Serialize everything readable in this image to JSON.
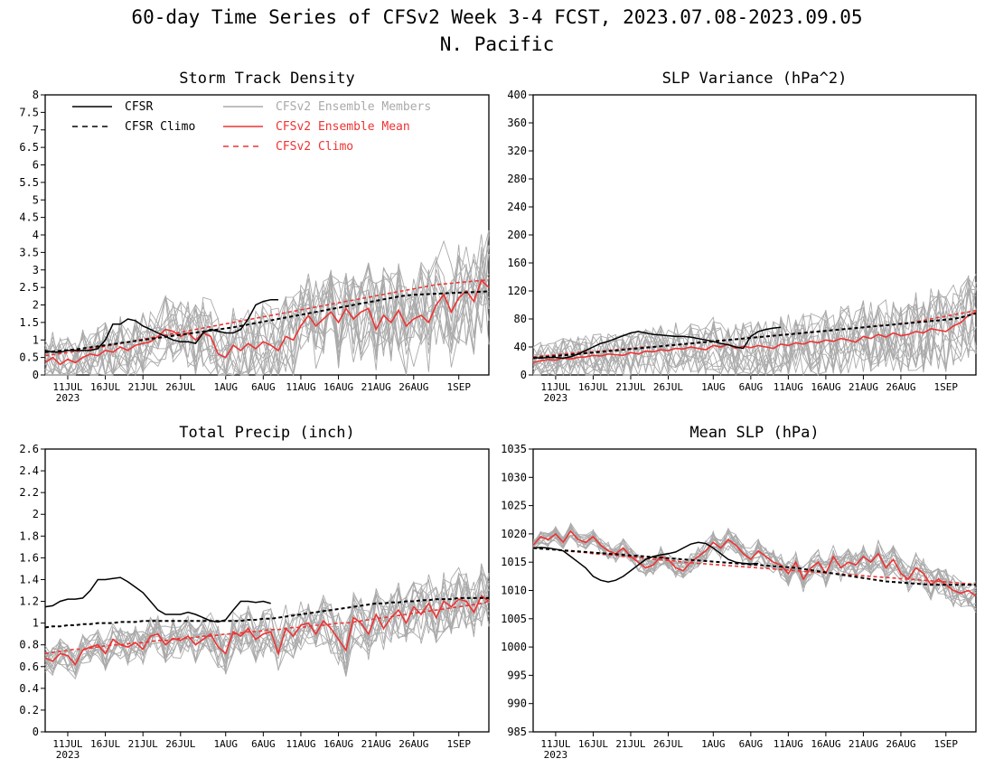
{
  "page": {
    "title_line1": "60-day Time Series of CFSv2 Week 3-4 FCST, 2023.07.08-2023.09.05",
    "title_line2": "N. Pacific"
  },
  "colors": {
    "cfsr": "#000000",
    "ensemble_member": "#aaaaaa",
    "ensemble_mean": "#ee3333",
    "axis": "#000000"
  },
  "legend": [
    {
      "label": "CFSR",
      "style": "solid",
      "color": "#000000"
    },
    {
      "label": "CFSR Climo",
      "style": "dashed",
      "color": "#000000"
    },
    {
      "label": "CFSv2 Ensemble Members",
      "style": "solid",
      "color": "#aaaaaa"
    },
    {
      "label": "CFSv2 Ensemble Mean",
      "style": "solid",
      "color": "#ee3333"
    },
    {
      "label": "CFSv2 Climo",
      "style": "dashed",
      "color": "#ee3333"
    }
  ],
  "x_axis": {
    "start_date": "2023-07-08",
    "end_date": "2023-09-05",
    "tick_days": [
      3,
      8,
      13,
      18,
      24,
      29,
      34,
      39,
      44,
      49,
      55
    ],
    "tick_labels": [
      "11JUL",
      "16JUL",
      "21JUL",
      "26JUL",
      "1AUG",
      "6AUG",
      "11AUG",
      "16AUG",
      "21AUG",
      "26AUG",
      "1SEP"
    ],
    "year_label": "2023"
  },
  "chart_data": [
    {
      "type": "line",
      "title": "Storm Track Density",
      "ylim": [
        0,
        8
      ],
      "y_ticks": [
        "0",
        "0.5",
        "1",
        "1.5",
        "2",
        "2.5",
        "3",
        "3.5",
        "4",
        "4.5",
        "5",
        "5.5",
        "6",
        "6.5",
        "7",
        "7.5",
        "8"
      ],
      "legend_position": "top-left",
      "series": [
        {
          "name": "CFSR",
          "values": [
            0.7,
            0.65,
            0.65,
            0.7,
            0.7,
            0.7,
            0.7,
            0.75,
            1.0,
            1.45,
            1.45,
            1.6,
            1.55,
            1.4,
            1.3,
            1.2,
            1.1,
            1.0,
            0.95,
            0.95,
            0.9,
            1.2,
            1.3,
            1.25,
            1.2,
            1.2,
            1.3,
            1.6,
            2.0,
            2.1,
            2.15,
            2.15
          ]
        },
        {
          "name": "CFSR Climo",
          "values": [
            0.65,
            0.67,
            0.69,
            0.71,
            0.73,
            0.76,
            0.79,
            0.82,
            0.85,
            0.88,
            0.91,
            0.94,
            0.97,
            1.0,
            1.03,
            1.06,
            1.09,
            1.12,
            1.15,
            1.18,
            1.21,
            1.24,
            1.27,
            1.3,
            1.33,
            1.36,
            1.4,
            1.44,
            1.48,
            1.52,
            1.56,
            1.6,
            1.64,
            1.68,
            1.72,
            1.76,
            1.8,
            1.84,
            1.88,
            1.92,
            1.96,
            2.0,
            2.04,
            2.08,
            2.12,
            2.16,
            2.2,
            2.24,
            2.27,
            2.29,
            2.3,
            2.31,
            2.32,
            2.33,
            2.34,
            2.35,
            2.36,
            2.37,
            2.38,
            2.39
          ]
        },
        {
          "name": "CFSv2 Ensemble Mean",
          "values": [
            0.35,
            0.5,
            0.3,
            0.45,
            0.35,
            0.5,
            0.6,
            0.55,
            0.7,
            0.65,
            0.8,
            0.7,
            0.85,
            0.9,
            0.95,
            1.1,
            1.3,
            1.25,
            1.1,
            1.2,
            1.0,
            1.2,
            1.1,
            0.6,
            0.5,
            0.85,
            0.7,
            0.9,
            0.75,
            0.95,
            0.85,
            0.7,
            1.1,
            1.0,
            1.4,
            1.7,
            1.4,
            1.6,
            1.8,
            1.5,
            1.9,
            1.6,
            1.8,
            1.9,
            1.3,
            1.7,
            1.5,
            1.85,
            1.4,
            1.6,
            1.7,
            1.5,
            2.0,
            2.3,
            1.8,
            2.2,
            2.4,
            2.1,
            2.7,
            2.5
          ]
        },
        {
          "name": "CFSv2 Climo",
          "values": [
            0.55,
            0.58,
            0.61,
            0.64,
            0.67,
            0.7,
            0.74,
            0.78,
            0.82,
            0.86,
            0.9,
            0.94,
            0.98,
            1.02,
            1.06,
            1.1,
            1.14,
            1.18,
            1.22,
            1.26,
            1.3,
            1.34,
            1.38,
            1.42,
            1.46,
            1.5,
            1.54,
            1.58,
            1.62,
            1.66,
            1.7,
            1.74,
            1.78,
            1.82,
            1.86,
            1.9,
            1.94,
            1.98,
            2.02,
            2.06,
            2.1,
            2.14,
            2.18,
            2.22,
            2.26,
            2.3,
            2.34,
            2.38,
            2.42,
            2.46,
            2.5,
            2.54,
            2.58,
            2.6,
            2.62,
            2.64,
            2.66,
            2.68,
            2.7,
            2.72
          ]
        }
      ]
    },
    {
      "type": "line",
      "title": "SLP Variance (hPa^2)",
      "ylim": [
        0,
        400
      ],
      "y_ticks": [
        "0",
        "40",
        "80",
        "120",
        "160",
        "200",
        "240",
        "280",
        "320",
        "360",
        "400"
      ],
      "series": [
        {
          "name": "CFSR",
          "values": [
            25,
            24,
            25,
            25,
            24,
            26,
            30,
            35,
            40,
            45,
            48,
            52,
            56,
            60,
            62,
            60,
            58,
            57,
            56,
            55,
            55,
            54,
            52,
            50,
            48,
            45,
            43,
            40,
            38,
            55,
            62,
            65,
            67,
            68
          ]
        },
        {
          "name": "CFSR Climo",
          "values": [
            24,
            25,
            26,
            27,
            28,
            29,
            30,
            31,
            32,
            33,
            34,
            35,
            36,
            37,
            38,
            39,
            40,
            41,
            42,
            43,
            44,
            45,
            46,
            47,
            48,
            49,
            50,
            51,
            52,
            53,
            54,
            55,
            56,
            57,
            58,
            59,
            60,
            61,
            62,
            63,
            64,
            65,
            66,
            67,
            68,
            69,
            70,
            71,
            72,
            73,
            74,
            75,
            76,
            77,
            78,
            79,
            80,
            82,
            85,
            88
          ]
        },
        {
          "name": "CFSv2 Ensemble Mean",
          "values": [
            18,
            20,
            22,
            21,
            24,
            23,
            25,
            26,
            28,
            27,
            30,
            29,
            28,
            32,
            30,
            34,
            33,
            36,
            35,
            38,
            37,
            40,
            38,
            36,
            42,
            40,
            44,
            38,
            41,
            39,
            42,
            40,
            38,
            44,
            42,
            46,
            44,
            48,
            46,
            50,
            48,
            52,
            50,
            47,
            55,
            52,
            58,
            54,
            60,
            56,
            58,
            62,
            60,
            66,
            64,
            62,
            70,
            75,
            85,
            90
          ]
        },
        {
          "name": "CFSv2 Climo",
          "values": [
            26,
            27,
            28,
            29,
            30,
            31,
            32,
            33,
            33,
            34,
            35,
            36,
            37,
            38,
            39,
            40,
            40,
            41,
            42,
            43,
            44,
            45,
            46,
            47,
            48,
            49,
            50,
            51,
            52,
            53,
            54,
            55,
            56,
            57,
            58,
            59,
            60,
            61,
            62,
            63,
            64,
            65,
            66,
            67,
            68,
            69,
            70,
            71,
            72,
            73,
            74,
            76,
            78,
            80,
            82,
            84,
            86,
            88,
            90,
            92
          ]
        }
      ]
    },
    {
      "type": "line",
      "title": "Total Precip (inch)",
      "ylim": [
        0,
        2.6
      ],
      "y_ticks": [
        "0",
        "0.2",
        "0.4",
        "0.6",
        "0.8",
        "1",
        "1.2",
        "1.4",
        "1.6",
        "1.8",
        "2",
        "2.2",
        "2.4",
        "2.6"
      ],
      "series": [
        {
          "name": "CFSR",
          "values": [
            1.15,
            1.16,
            1.2,
            1.22,
            1.22,
            1.23,
            1.3,
            1.4,
            1.4,
            1.41,
            1.42,
            1.38,
            1.33,
            1.28,
            1.2,
            1.12,
            1.08,
            1.08,
            1.08,
            1.1,
            1.08,
            1.05,
            1.02,
            1.01,
            1.03,
            1.12,
            1.2,
            1.2,
            1.19,
            1.2,
            1.18
          ]
        },
        {
          "name": "CFSR Climo",
          "values": [
            0.96,
            0.97,
            0.97,
            0.98,
            0.98,
            0.99,
            0.99,
            1.0,
            1.0,
            1.0,
            1.01,
            1.01,
            1.01,
            1.02,
            1.02,
            1.02,
            1.02,
            1.02,
            1.02,
            1.02,
            1.02,
            1.02,
            1.02,
            1.02,
            1.02,
            1.02,
            1.02,
            1.03,
            1.03,
            1.04,
            1.04,
            1.05,
            1.06,
            1.07,
            1.08,
            1.09,
            1.1,
            1.11,
            1.12,
            1.13,
            1.14,
            1.15,
            1.16,
            1.17,
            1.18,
            1.18,
            1.19,
            1.19,
            1.2,
            1.2,
            1.21,
            1.21,
            1.22,
            1.22,
            1.22,
            1.23,
            1.23,
            1.23,
            1.23,
            1.23
          ]
        },
        {
          "name": "CFSv2 Ensemble Mean",
          "values": [
            0.68,
            0.65,
            0.72,
            0.7,
            0.62,
            0.75,
            0.78,
            0.8,
            0.72,
            0.85,
            0.8,
            0.78,
            0.82,
            0.76,
            0.88,
            0.9,
            0.8,
            0.86,
            0.84,
            0.88,
            0.8,
            0.85,
            0.9,
            0.78,
            0.72,
            0.92,
            0.88,
            0.95,
            0.85,
            0.9,
            0.92,
            0.72,
            0.95,
            0.88,
            0.98,
            1.0,
            0.9,
            1.02,
            0.95,
            0.85,
            0.75,
            1.05,
            1.0,
            0.9,
            1.08,
            0.95,
            1.05,
            1.12,
            1.0,
            1.15,
            1.08,
            1.18,
            1.05,
            1.2,
            1.15,
            1.22,
            1.2,
            1.1,
            1.25,
            1.2
          ]
        },
        {
          "name": "CFSv2 Climo",
          "values": [
            0.72,
            0.73,
            0.74,
            0.75,
            0.76,
            0.76,
            0.77,
            0.78,
            0.79,
            0.8,
            0.8,
            0.81,
            0.82,
            0.82,
            0.83,
            0.84,
            0.84,
            0.85,
            0.86,
            0.86,
            0.87,
            0.88,
            0.88,
            0.89,
            0.9,
            0.9,
            0.91,
            0.92,
            0.92,
            0.93,
            0.94,
            0.94,
            0.95,
            0.96,
            0.96,
            0.97,
            0.98,
            0.98,
            0.99,
            1.0,
            1.0,
            1.01,
            1.02,
            1.03,
            1.04,
            1.05,
            1.06,
            1.07,
            1.08,
            1.09,
            1.1,
            1.11,
            1.12,
            1.13,
            1.14,
            1.15,
            1.16,
            1.17,
            1.18,
            1.2
          ]
        }
      ]
    },
    {
      "type": "line",
      "title": "Mean SLP (hPa)",
      "ylim": [
        985,
        1035
      ],
      "y_ticks": [
        "985",
        "990",
        "995",
        "1000",
        "1005",
        "1010",
        "1015",
        "1020",
        "1025",
        "1030",
        "1035"
      ],
      "series": [
        {
          "name": "CFSR",
          "values": [
            1017.5,
            1017.6,
            1017.5,
            1017.3,
            1017,
            1016,
            1015,
            1014,
            1012.5,
            1011.8,
            1011.5,
            1011.8,
            1012.5,
            1013.5,
            1014.5,
            1015.5,
            1016,
            1016.3,
            1016.5,
            1016.8,
            1017.5,
            1018.2,
            1018.5,
            1018.3,
            1017.5,
            1016.5,
            1015.5,
            1015,
            1014.8,
            1014.7,
            1014.8
          ]
        },
        {
          "name": "CFSR Climo",
          "values": [
            1017.5,
            1017.4,
            1017.3,
            1017.2,
            1017.1,
            1017,
            1016.9,
            1016.8,
            1016.7,
            1016.6,
            1016.5,
            1016.4,
            1016.3,
            1016.2,
            1016.1,
            1016,
            1015.9,
            1015.8,
            1015.7,
            1015.6,
            1015.5,
            1015.4,
            1015.3,
            1015.2,
            1015.1,
            1015,
            1014.9,
            1014.8,
            1014.7,
            1014.6,
            1014.5,
            1014.4,
            1014.3,
            1014.2,
            1014.1,
            1014,
            1013.8,
            1013.6,
            1013.4,
            1013.2,
            1013,
            1012.8,
            1012.6,
            1012.4,
            1012.2,
            1012,
            1011.8,
            1011.6,
            1011.5,
            1011.4,
            1011.3,
            1011.2,
            1011.1,
            1011,
            1011,
            1011,
            1011,
            1011,
            1011,
            1011
          ]
        },
        {
          "name": "CFSv2 Ensemble Mean",
          "values": [
            1018,
            1019.5,
            1019,
            1020,
            1018.5,
            1020.5,
            1019,
            1018.5,
            1019.5,
            1018,
            1017,
            1016.5,
            1017.5,
            1016,
            1015,
            1014,
            1014.5,
            1016,
            1015.5,
            1014,
            1013.5,
            1015,
            1016,
            1017,
            1018.5,
            1017.5,
            1019,
            1018,
            1016.5,
            1015.5,
            1017,
            1016,
            1015,
            1014.5,
            1013,
            1015,
            1012,
            1014,
            1015,
            1013,
            1016,
            1014,
            1015,
            1014.5,
            1016,
            1015,
            1016.5,
            1014,
            1015.5,
            1013,
            1012,
            1014,
            1013,
            1011,
            1012,
            1011,
            1010,
            1009.5,
            1010,
            1009
          ]
        },
        {
          "name": "CFSv2 Climo",
          "values": [
            1017.5,
            1017.4,
            1017.3,
            1017.2,
            1017,
            1016.9,
            1016.8,
            1016.7,
            1016.5,
            1016.4,
            1016.3,
            1016.2,
            1016,
            1015.9,
            1015.8,
            1015.7,
            1015.5,
            1015.4,
            1015.3,
            1015.2,
            1015,
            1014.9,
            1014.8,
            1014.7,
            1014.6,
            1014.5,
            1014.4,
            1014.3,
            1014.2,
            1014.1,
            1014,
            1013.9,
            1013.8,
            1013.7,
            1013.6,
            1013.5,
            1013.4,
            1013.3,
            1013.2,
            1013.1,
            1013,
            1012.9,
            1012.8,
            1012.7,
            1012.6,
            1012.5,
            1012.4,
            1012.3,
            1012.2,
            1012.1,
            1012,
            1011.9,
            1011.8,
            1011.7,
            1011.6,
            1011.5,
            1011.4,
            1011.3,
            1011.2,
            1011.1
          ]
        }
      ]
    }
  ]
}
